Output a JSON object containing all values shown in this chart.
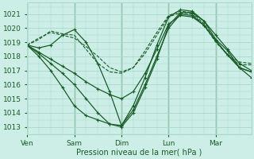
{
  "bg_color": "#cceee6",
  "grid_color": "#a8d8cc",
  "line_color": "#1a5c28",
  "xlabel": "Pression niveau de la mer( hPa )",
  "xtick_labels": [
    "Ven",
    "Sam",
    "Dim",
    "Lun",
    "Mar"
  ],
  "xtick_positions": [
    0,
    24,
    48,
    72,
    96
  ],
  "xlim": [
    0,
    114
  ],
  "ylim": [
    1012.5,
    1021.8
  ],
  "yticks": [
    1013,
    1014,
    1015,
    1016,
    1017,
    1018,
    1019,
    1020,
    1021
  ],
  "series": [
    {
      "x": [
        0,
        6,
        12,
        18,
        24,
        30,
        36,
        42,
        48,
        54,
        60,
        66,
        72,
        78,
        84,
        90,
        96,
        102,
        108,
        114
      ],
      "y": [
        1018.8,
        1018.6,
        1018.8,
        1019.5,
        1019.9,
        1019.0,
        1017.5,
        1015.5,
        1013.1,
        1014.5,
        1016.5,
        1018.8,
        1020.8,
        1021.3,
        1021.2,
        1020.5,
        1019.5,
        1018.5,
        1017.5,
        1017.0
      ],
      "ls": "-",
      "marker": "+",
      "ms": 3,
      "lw": 0.9,
      "mew": 0.8
    },
    {
      "x": [
        0,
        6,
        12,
        18,
        24,
        30,
        36,
        42,
        48,
        54,
        60,
        66,
        72,
        78,
        84,
        90,
        96,
        102,
        108,
        114
      ],
      "y": [
        1018.8,
        1018.2,
        1017.5,
        1016.8,
        1016.0,
        1015.0,
        1014.0,
        1013.2,
        1013.0,
        1014.0,
        1015.8,
        1017.8,
        1020.2,
        1021.1,
        1021.1,
        1020.5,
        1019.2,
        1018.4,
        1017.2,
        1016.5
      ],
      "ls": "-",
      "marker": "+",
      "ms": 3,
      "lw": 0.9,
      "mew": 0.8
    },
    {
      "x": [
        0,
        6,
        12,
        18,
        24,
        30,
        36,
        42,
        48,
        54,
        60,
        66,
        72,
        78,
        84,
        90,
        96,
        102,
        108,
        114
      ],
      "y": [
        1018.8,
        1019.2,
        1019.8,
        1019.6,
        1019.5,
        1018.5,
        1017.5,
        1016.9,
        1016.8,
        1017.2,
        1018.4,
        1019.7,
        1020.9,
        1021.2,
        1021.1,
        1020.3,
        1019.1,
        1018.1,
        1017.4,
        1017.4
      ],
      "ls": "--",
      "marker": null,
      "ms": 0,
      "lw": 0.8,
      "mew": 0
    },
    {
      "x": [
        0,
        6,
        12,
        18,
        24,
        30,
        36,
        42,
        48,
        54,
        60,
        66,
        72,
        78,
        84,
        90,
        96,
        102,
        108,
        114
      ],
      "y": [
        1018.8,
        1018.0,
        1017.0,
        1015.8,
        1014.5,
        1013.8,
        1013.5,
        1013.2,
        1013.1,
        1014.2,
        1016.0,
        1018.0,
        1020.0,
        1021.0,
        1020.9,
        1020.2,
        1019.1,
        1018.1,
        1017.2,
        1016.9
      ],
      "ls": "-",
      "marker": "+",
      "ms": 3,
      "lw": 0.9,
      "mew": 0.8
    },
    {
      "x": [
        0,
        6,
        12,
        18,
        24,
        30,
        36,
        42,
        48,
        54,
        60,
        66,
        72,
        78,
        84,
        90,
        96,
        102,
        108,
        114
      ],
      "y": [
        1018.8,
        1019.3,
        1019.7,
        1019.5,
        1019.3,
        1018.7,
        1018.0,
        1017.2,
        1016.9,
        1017.2,
        1018.2,
        1019.5,
        1020.8,
        1021.1,
        1021.0,
        1020.2,
        1019.0,
        1018.1,
        1017.6,
        1017.5
      ],
      "ls": "--",
      "marker": null,
      "ms": 0,
      "lw": 0.8,
      "mew": 0
    },
    {
      "x": [
        0,
        6,
        12,
        18,
        24,
        30,
        36,
        42,
        48,
        54,
        60,
        66,
        72,
        78,
        84,
        90,
        96,
        102,
        108,
        114
      ],
      "y": [
        1018.8,
        1018.3,
        1017.8,
        1017.3,
        1016.8,
        1016.2,
        1015.7,
        1015.3,
        1015.0,
        1015.5,
        1016.8,
        1018.5,
        1020.3,
        1020.9,
        1020.8,
        1020.2,
        1019.1,
        1018.1,
        1017.2,
        1016.9
      ],
      "ls": "-",
      "marker": "+",
      "ms": 3,
      "lw": 0.9,
      "mew": 0.8
    }
  ]
}
